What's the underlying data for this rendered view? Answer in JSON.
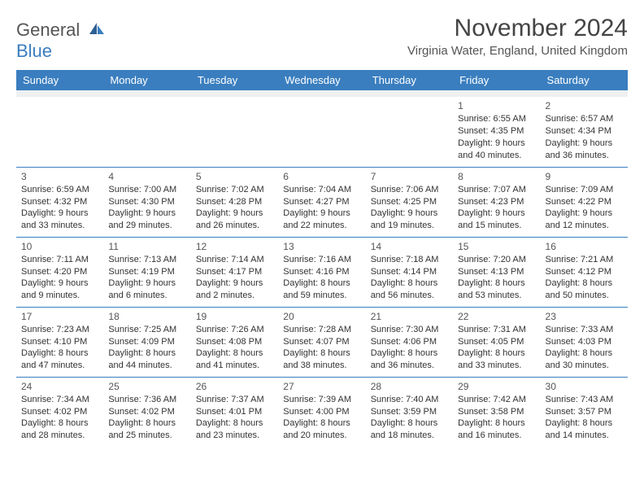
{
  "brand": {
    "top": "General",
    "bottom": "Blue"
  },
  "title": "November 2024",
  "location": "Virginia Water, England, United Kingdom",
  "colors": {
    "header_bg": "#3a7ebf",
    "header_text": "#ffffff",
    "spacer_bg": "#eef0f2",
    "border": "#3a7ebf",
    "text": "#333333",
    "logo_accent": "#3a7ebf"
  },
  "day_headers": [
    "Sunday",
    "Monday",
    "Tuesday",
    "Wednesday",
    "Thursday",
    "Friday",
    "Saturday"
  ],
  "weeks": [
    [
      null,
      null,
      null,
      null,
      null,
      {
        "n": "1",
        "sr": "Sunrise: 6:55 AM",
        "ss": "Sunset: 4:35 PM",
        "dl1": "Daylight: 9 hours",
        "dl2": "and 40 minutes."
      },
      {
        "n": "2",
        "sr": "Sunrise: 6:57 AM",
        "ss": "Sunset: 4:34 PM",
        "dl1": "Daylight: 9 hours",
        "dl2": "and 36 minutes."
      }
    ],
    [
      {
        "n": "3",
        "sr": "Sunrise: 6:59 AM",
        "ss": "Sunset: 4:32 PM",
        "dl1": "Daylight: 9 hours",
        "dl2": "and 33 minutes."
      },
      {
        "n": "4",
        "sr": "Sunrise: 7:00 AM",
        "ss": "Sunset: 4:30 PM",
        "dl1": "Daylight: 9 hours",
        "dl2": "and 29 minutes."
      },
      {
        "n": "5",
        "sr": "Sunrise: 7:02 AM",
        "ss": "Sunset: 4:28 PM",
        "dl1": "Daylight: 9 hours",
        "dl2": "and 26 minutes."
      },
      {
        "n": "6",
        "sr": "Sunrise: 7:04 AM",
        "ss": "Sunset: 4:27 PM",
        "dl1": "Daylight: 9 hours",
        "dl2": "and 22 minutes."
      },
      {
        "n": "7",
        "sr": "Sunrise: 7:06 AM",
        "ss": "Sunset: 4:25 PM",
        "dl1": "Daylight: 9 hours",
        "dl2": "and 19 minutes."
      },
      {
        "n": "8",
        "sr": "Sunrise: 7:07 AM",
        "ss": "Sunset: 4:23 PM",
        "dl1": "Daylight: 9 hours",
        "dl2": "and 15 minutes."
      },
      {
        "n": "9",
        "sr": "Sunrise: 7:09 AM",
        "ss": "Sunset: 4:22 PM",
        "dl1": "Daylight: 9 hours",
        "dl2": "and 12 minutes."
      }
    ],
    [
      {
        "n": "10",
        "sr": "Sunrise: 7:11 AM",
        "ss": "Sunset: 4:20 PM",
        "dl1": "Daylight: 9 hours",
        "dl2": "and 9 minutes."
      },
      {
        "n": "11",
        "sr": "Sunrise: 7:13 AM",
        "ss": "Sunset: 4:19 PM",
        "dl1": "Daylight: 9 hours",
        "dl2": "and 6 minutes."
      },
      {
        "n": "12",
        "sr": "Sunrise: 7:14 AM",
        "ss": "Sunset: 4:17 PM",
        "dl1": "Daylight: 9 hours",
        "dl2": "and 2 minutes."
      },
      {
        "n": "13",
        "sr": "Sunrise: 7:16 AM",
        "ss": "Sunset: 4:16 PM",
        "dl1": "Daylight: 8 hours",
        "dl2": "and 59 minutes."
      },
      {
        "n": "14",
        "sr": "Sunrise: 7:18 AM",
        "ss": "Sunset: 4:14 PM",
        "dl1": "Daylight: 8 hours",
        "dl2": "and 56 minutes."
      },
      {
        "n": "15",
        "sr": "Sunrise: 7:20 AM",
        "ss": "Sunset: 4:13 PM",
        "dl1": "Daylight: 8 hours",
        "dl2": "and 53 minutes."
      },
      {
        "n": "16",
        "sr": "Sunrise: 7:21 AM",
        "ss": "Sunset: 4:12 PM",
        "dl1": "Daylight: 8 hours",
        "dl2": "and 50 minutes."
      }
    ],
    [
      {
        "n": "17",
        "sr": "Sunrise: 7:23 AM",
        "ss": "Sunset: 4:10 PM",
        "dl1": "Daylight: 8 hours",
        "dl2": "and 47 minutes."
      },
      {
        "n": "18",
        "sr": "Sunrise: 7:25 AM",
        "ss": "Sunset: 4:09 PM",
        "dl1": "Daylight: 8 hours",
        "dl2": "and 44 minutes."
      },
      {
        "n": "19",
        "sr": "Sunrise: 7:26 AM",
        "ss": "Sunset: 4:08 PM",
        "dl1": "Daylight: 8 hours",
        "dl2": "and 41 minutes."
      },
      {
        "n": "20",
        "sr": "Sunrise: 7:28 AM",
        "ss": "Sunset: 4:07 PM",
        "dl1": "Daylight: 8 hours",
        "dl2": "and 38 minutes."
      },
      {
        "n": "21",
        "sr": "Sunrise: 7:30 AM",
        "ss": "Sunset: 4:06 PM",
        "dl1": "Daylight: 8 hours",
        "dl2": "and 36 minutes."
      },
      {
        "n": "22",
        "sr": "Sunrise: 7:31 AM",
        "ss": "Sunset: 4:05 PM",
        "dl1": "Daylight: 8 hours",
        "dl2": "and 33 minutes."
      },
      {
        "n": "23",
        "sr": "Sunrise: 7:33 AM",
        "ss": "Sunset: 4:03 PM",
        "dl1": "Daylight: 8 hours",
        "dl2": "and 30 minutes."
      }
    ],
    [
      {
        "n": "24",
        "sr": "Sunrise: 7:34 AM",
        "ss": "Sunset: 4:02 PM",
        "dl1": "Daylight: 8 hours",
        "dl2": "and 28 minutes."
      },
      {
        "n": "25",
        "sr": "Sunrise: 7:36 AM",
        "ss": "Sunset: 4:02 PM",
        "dl1": "Daylight: 8 hours",
        "dl2": "and 25 minutes."
      },
      {
        "n": "26",
        "sr": "Sunrise: 7:37 AM",
        "ss": "Sunset: 4:01 PM",
        "dl1": "Daylight: 8 hours",
        "dl2": "and 23 minutes."
      },
      {
        "n": "27",
        "sr": "Sunrise: 7:39 AM",
        "ss": "Sunset: 4:00 PM",
        "dl1": "Daylight: 8 hours",
        "dl2": "and 20 minutes."
      },
      {
        "n": "28",
        "sr": "Sunrise: 7:40 AM",
        "ss": "Sunset: 3:59 PM",
        "dl1": "Daylight: 8 hours",
        "dl2": "and 18 minutes."
      },
      {
        "n": "29",
        "sr": "Sunrise: 7:42 AM",
        "ss": "Sunset: 3:58 PM",
        "dl1": "Daylight: 8 hours",
        "dl2": "and 16 minutes."
      },
      {
        "n": "30",
        "sr": "Sunrise: 7:43 AM",
        "ss": "Sunset: 3:57 PM",
        "dl1": "Daylight: 8 hours",
        "dl2": "and 14 minutes."
      }
    ]
  ]
}
